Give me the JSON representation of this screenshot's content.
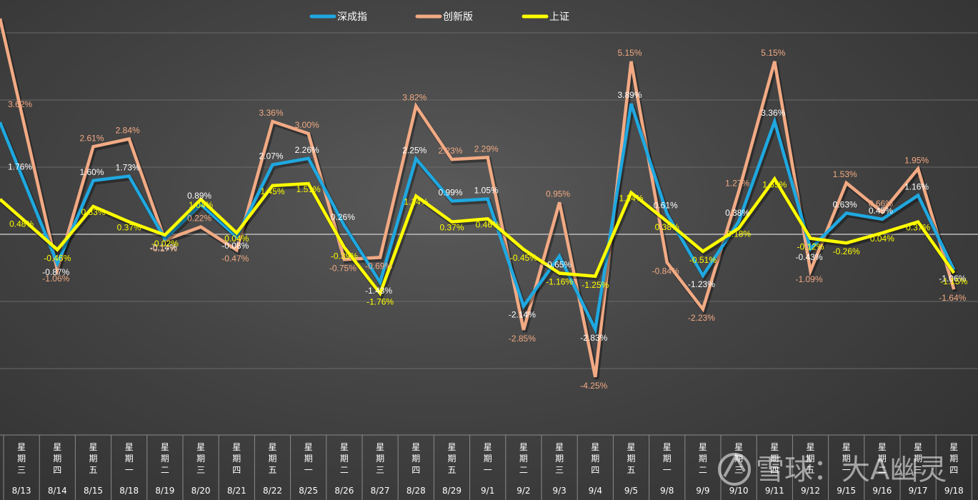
{
  "chart_data": {
    "type": "line",
    "title": "",
    "xlabel": "",
    "ylabel": "",
    "ylim": [
      -6,
      6
    ],
    "grid": true,
    "legend_position": "top-center",
    "categories": [
      "8/13",
      "8/14",
      "8/15",
      "8/18",
      "8/19",
      "8/20",
      "8/21",
      "8/22",
      "8/25",
      "8/26",
      "8/27",
      "8/28",
      "8/29",
      "9/1",
      "9/2",
      "9/3",
      "9/4",
      "9/5",
      "9/8",
      "9/9",
      "9/10",
      "9/11",
      "9/12",
      "9/15",
      "9/16",
      "9/17",
      "9/18"
    ],
    "weekdays": [
      [
        "星",
        "期",
        "三"
      ],
      [
        "星",
        "期",
        "四"
      ],
      [
        "星",
        "期",
        "五"
      ],
      [
        "星",
        "期",
        "一"
      ],
      [
        "星",
        "期",
        "二"
      ],
      [
        "星",
        "期",
        "三"
      ],
      [
        "星",
        "期",
        "四"
      ],
      [
        "星",
        "期",
        "五"
      ],
      [
        "星",
        "期",
        "一"
      ],
      [
        "星",
        "期",
        "二"
      ],
      [
        "星",
        "期",
        "三"
      ],
      [
        "星",
        "期",
        "四"
      ],
      [
        "星",
        "期",
        "五"
      ],
      [
        "星",
        "期",
        "一"
      ],
      [
        "星",
        "期",
        "二"
      ],
      [
        "星",
        "期",
        "三"
      ],
      [
        "星",
        "期",
        "四"
      ],
      [
        "星",
        "期",
        "五"
      ],
      [
        "星",
        "期",
        "一"
      ],
      [
        "星",
        "期",
        "二"
      ],
      [
        "星",
        "期",
        "三"
      ],
      [
        "星",
        "期",
        "四"
      ],
      [
        "星",
        "期",
        "五"
      ],
      [
        "星",
        "期",
        "一"
      ],
      [
        "星",
        "期",
        "二"
      ],
      [
        "星",
        "期",
        "三"
      ],
      [
        "星",
        "期",
        "四"
      ]
    ],
    "series": [
      {
        "name": "深成指",
        "color": "#1fa8e0",
        "label_color": "#ffffff",
        "values": [
          1.76,
          -0.87,
          1.6,
          1.73,
          -0.14,
          0.89,
          -0.08,
          2.07,
          2.26,
          0.26,
          -1.43,
          2.25,
          0.99,
          1.05,
          -2.14,
          -0.65,
          -2.83,
          3.89,
          0.61,
          -1.23,
          0.38,
          3.36,
          -0.43,
          0.63,
          0.45,
          1.16,
          -1.06
        ],
        "labels": [
          "1.76%",
          "-0.87%",
          "1.60%",
          "1.73%",
          "-0.14%",
          "0.89%",
          "-0.08%",
          "2.07%",
          "2.26%",
          "0.26%",
          "-1.43%",
          "2.25%",
          "0.99%",
          "1.05%",
          "-2.14%",
          "-0.65%",
          "-2.83%",
          "3.89%",
          "0.61%",
          "-1.23%",
          "0.38%",
          "3.36%",
          "-0.43%",
          "0.63%",
          "0.45%",
          "1.16%",
          "-1.06%"
        ]
      },
      {
        "name": "创新版",
        "color": "#f2aa84",
        "label_color": "#f2aa84",
        "values": [
          3.62,
          -1.06,
          2.61,
          2.84,
          -0.17,
          0.22,
          -0.47,
          3.36,
          3.0,
          -0.75,
          -0.69,
          3.82,
          2.23,
          2.29,
          -2.85,
          0.95,
          -4.25,
          5.15,
          -0.84,
          -2.23,
          1.27,
          5.15,
          -1.09,
          1.53,
          0.66,
          1.95,
          -1.64
        ],
        "labels": [
          "3.62%",
          "-1.06%",
          "2.61%",
          "2.84%",
          "-0.17%",
          "0.22%",
          "-0.47%",
          "3.36%",
          "3.00%",
          "-0.75%",
          "-0.69%",
          "3.82%",
          "2.23%",
          "2.29%",
          "-2.85%",
          "0.95%",
          "-4.25%",
          "5.15%",
          "-0.84%",
          "-2.23%",
          "1.27%",
          "5.15%",
          "-1.09%",
          "1.53%",
          "0.66%",
          "1.95%",
          "-1.64%"
        ]
      },
      {
        "name": "上证",
        "color": "#ffff00",
        "label_color": "#ffff00",
        "values": [
          0.48,
          -0.46,
          0.83,
          0.37,
          -0.02,
          1.04,
          0.04,
          1.45,
          1.51,
          -0.39,
          -1.76,
          1.14,
          0.37,
          0.46,
          -0.45,
          -1.16,
          -1.25,
          1.24,
          0.38,
          -0.51,
          0.18,
          1.65,
          -0.12,
          -0.26,
          0.04,
          0.37,
          -1.15
        ],
        "labels": [
          "0.48%",
          "-0.46%",
          "0.83%",
          "0.37%",
          "-0.02%",
          "1.04%",
          "0.04%",
          "1.45%",
          "1.51%",
          "-0.39%",
          "-1.76%",
          "1.14%",
          "0.37%",
          "0.46%",
          "-0.45%",
          "-1.16%",
          "-1.25%",
          "1.24%",
          "0.38%",
          "-0.51%",
          "0.18%",
          "1.65%",
          "-0.12%",
          "-0.26%",
          "0.04%",
          "0.37%",
          "-1.15%"
        ]
      }
    ]
  },
  "watermark": {
    "text": "雪球：大A幽灵",
    "icon": "snowball-logo-icon"
  }
}
